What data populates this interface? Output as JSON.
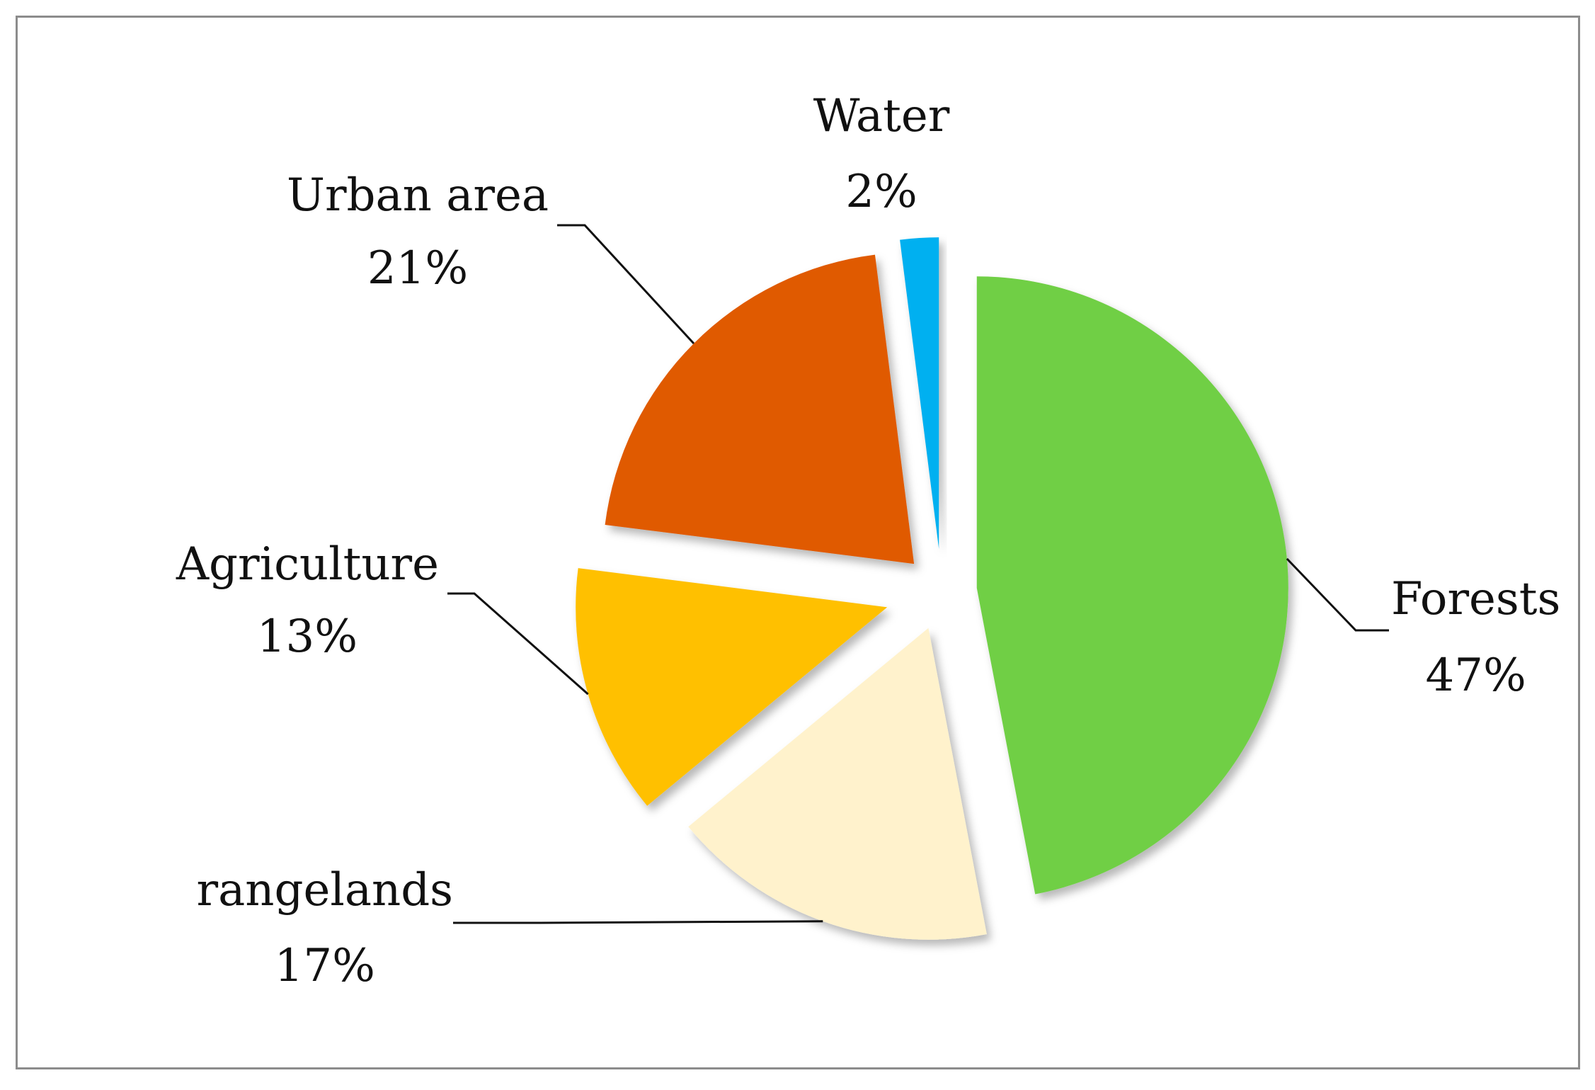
{
  "chart_data": {
    "type": "pie",
    "exploded": true,
    "start_angle_deg": 0,
    "direction": "clockwise",
    "slices": [
      {
        "label": "Forests",
        "value": 47,
        "value_label": "47%",
        "color": "#6fcf45"
      },
      {
        "label": "rangelands",
        "value": 17,
        "value_label": "17%",
        "color": "#fff2cc"
      },
      {
        "label": "Agriculture",
        "value": 13,
        "value_label": "13%",
        "color": "#ffc000"
      },
      {
        "label": "Urban area",
        "value": 21,
        "value_label": "21%",
        "color": "#e05a00"
      },
      {
        "label": "Water",
        "value": 2,
        "value_label": "2%",
        "color": "#00b0f0"
      }
    ],
    "legend": "none",
    "data_labels": "outside with leader lines"
  }
}
